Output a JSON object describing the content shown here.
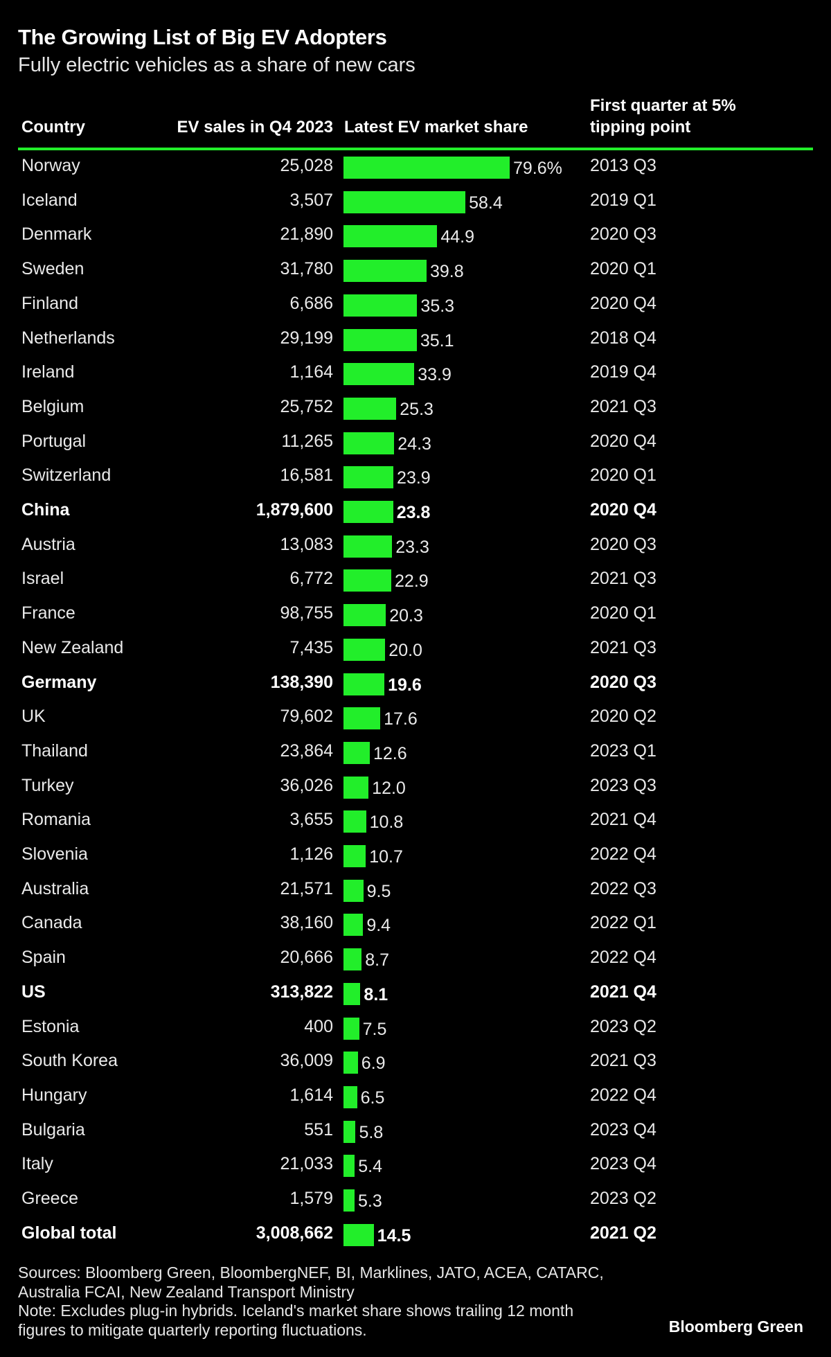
{
  "title": "The Growing List of Big EV Adopters",
  "subtitle": "Fully electric vehicles as a share of new cars",
  "columns": {
    "country": "Country",
    "sales": "EV sales in Q4 2023",
    "share": "Latest EV market share",
    "first_quarter_line1": "First quarter at 5%",
    "first_quarter_line2": "tipping point"
  },
  "colors": {
    "bar": "#22ee2a",
    "rule": "#22ee2a",
    "background": "#000000",
    "text": "#ffffff"
  },
  "chart_data": {
    "type": "table",
    "share_axis_max": 79.6,
    "rows": [
      {
        "country": "Norway",
        "sales": "25,028",
        "share": 79.6,
        "share_label": "79.6%",
        "first_quarter": "2013 Q3",
        "bold": false
      },
      {
        "country": "Iceland",
        "sales": "3,507",
        "share": 58.4,
        "share_label": "58.4",
        "first_quarter": "2019 Q1",
        "bold": false
      },
      {
        "country": "Denmark",
        "sales": "21,890",
        "share": 44.9,
        "share_label": "44.9",
        "first_quarter": "2020 Q3",
        "bold": false
      },
      {
        "country": "Sweden",
        "sales": "31,780",
        "share": 39.8,
        "share_label": "39.8",
        "first_quarter": "2020 Q1",
        "bold": false
      },
      {
        "country": "Finland",
        "sales": "6,686",
        "share": 35.3,
        "share_label": "35.3",
        "first_quarter": "2020 Q4",
        "bold": false
      },
      {
        "country": "Netherlands",
        "sales": "29,199",
        "share": 35.1,
        "share_label": "35.1",
        "first_quarter": "2018 Q4",
        "bold": false
      },
      {
        "country": "Ireland",
        "sales": "1,164",
        "share": 33.9,
        "share_label": "33.9",
        "first_quarter": "2019 Q4",
        "bold": false
      },
      {
        "country": "Belgium",
        "sales": "25,752",
        "share": 25.3,
        "share_label": "25.3",
        "first_quarter": "2021 Q3",
        "bold": false
      },
      {
        "country": "Portugal",
        "sales": "11,265",
        "share": 24.3,
        "share_label": "24.3",
        "first_quarter": "2020 Q4",
        "bold": false
      },
      {
        "country": "Switzerland",
        "sales": "16,581",
        "share": 23.9,
        "share_label": "23.9",
        "first_quarter": "2020 Q1",
        "bold": false
      },
      {
        "country": "China",
        "sales": "1,879,600",
        "share": 23.8,
        "share_label": "23.8",
        "first_quarter": "2020 Q4",
        "bold": true
      },
      {
        "country": "Austria",
        "sales": "13,083",
        "share": 23.3,
        "share_label": "23.3",
        "first_quarter": "2020 Q3",
        "bold": false
      },
      {
        "country": "Israel",
        "sales": "6,772",
        "share": 22.9,
        "share_label": "22.9",
        "first_quarter": "2021 Q3",
        "bold": false
      },
      {
        "country": "France",
        "sales": "98,755",
        "share": 20.3,
        "share_label": "20.3",
        "first_quarter": "2020 Q1",
        "bold": false
      },
      {
        "country": "New Zealand",
        "sales": "7,435",
        "share": 20.0,
        "share_label": "20.0",
        "first_quarter": "2021 Q3",
        "bold": false
      },
      {
        "country": "Germany",
        "sales": "138,390",
        "share": 19.6,
        "share_label": "19.6",
        "first_quarter": "2020 Q3",
        "bold": true
      },
      {
        "country": "UK",
        "sales": "79,602",
        "share": 17.6,
        "share_label": "17.6",
        "first_quarter": "2020 Q2",
        "bold": false
      },
      {
        "country": "Thailand",
        "sales": "23,864",
        "share": 12.6,
        "share_label": "12.6",
        "first_quarter": "2023 Q1",
        "bold": false
      },
      {
        "country": "Turkey",
        "sales": "36,026",
        "share": 12.0,
        "share_label": "12.0",
        "first_quarter": "2023 Q3",
        "bold": false
      },
      {
        "country": "Romania",
        "sales": "3,655",
        "share": 10.8,
        "share_label": "10.8",
        "first_quarter": "2021 Q4",
        "bold": false
      },
      {
        "country": "Slovenia",
        "sales": "1,126",
        "share": 10.7,
        "share_label": "10.7",
        "first_quarter": "2022 Q4",
        "bold": false
      },
      {
        "country": "Australia",
        "sales": "21,571",
        "share": 9.5,
        "share_label": "9.5",
        "first_quarter": "2022 Q3",
        "bold": false
      },
      {
        "country": "Canada",
        "sales": "38,160",
        "share": 9.4,
        "share_label": "9.4",
        "first_quarter": "2022 Q1",
        "bold": false
      },
      {
        "country": "Spain",
        "sales": "20,666",
        "share": 8.7,
        "share_label": "8.7",
        "first_quarter": "2022 Q4",
        "bold": false
      },
      {
        "country": "US",
        "sales": "313,822",
        "share": 8.1,
        "share_label": "8.1",
        "first_quarter": "2021 Q4",
        "bold": true
      },
      {
        "country": "Estonia",
        "sales": "400",
        "share": 7.5,
        "share_label": "7.5",
        "first_quarter": "2023 Q2",
        "bold": false
      },
      {
        "country": "South Korea",
        "sales": "36,009",
        "share": 6.9,
        "share_label": "6.9",
        "first_quarter": "2021 Q3",
        "bold": false
      },
      {
        "country": "Hungary",
        "sales": "1,614",
        "share": 6.5,
        "share_label": "6.5",
        "first_quarter": "2022 Q4",
        "bold": false
      },
      {
        "country": "Bulgaria",
        "sales": "551",
        "share": 5.8,
        "share_label": "5.8",
        "first_quarter": "2023 Q4",
        "bold": false
      },
      {
        "country": "Italy",
        "sales": "21,033",
        "share": 5.4,
        "share_label": "5.4",
        "first_quarter": "2023 Q4",
        "bold": false
      },
      {
        "country": "Greece",
        "sales": "1,579",
        "share": 5.3,
        "share_label": "5.3",
        "first_quarter": "2023 Q2",
        "bold": false
      },
      {
        "country": "Global total",
        "sales": "3,008,662",
        "share": 14.5,
        "share_label": "14.5",
        "first_quarter": "2021 Q2",
        "bold": true
      }
    ]
  },
  "footer": {
    "sources_line1": "Sources: Bloomberg Green, BloombergNEF, BI, Marklines, JATO, ACEA, CATARC,",
    "sources_line2": "Australia FCAI, New Zealand Transport Ministry",
    "note_line1": "Note: Excludes plug-in hybrids. Iceland's market share shows trailing 12 month",
    "note_line2": "figures to mitigate quarterly reporting fluctuations.",
    "brand": "Bloomberg Green"
  }
}
